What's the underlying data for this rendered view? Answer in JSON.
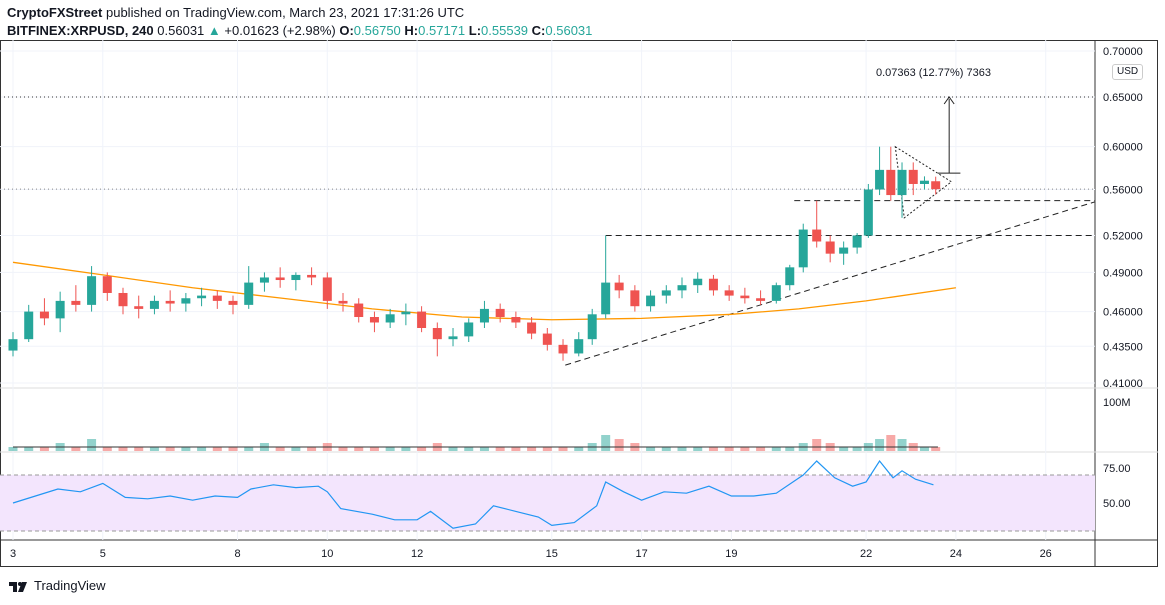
{
  "header": {
    "line1_author": "CryptoFXStreet",
    "line1_rest": "published on TradingView.com, March 23, 2021 17:31:26 UTC",
    "symbol": "BITFINEX:XRPUSD, 240",
    "last": "0.56031",
    "change": "+0.01623 (+2.98%)",
    "o_label": "O:",
    "o": "0.56750",
    "h_label": "H:",
    "h": "0.57171",
    "l_label": "L:",
    "l": "0.55539",
    "c_label": "C:",
    "c": "0.56031"
  },
  "currency": "USD",
  "footer": {
    "brand": "TradingView"
  },
  "colors": {
    "up": "#26a69a",
    "down": "#ef5350",
    "ma": "#ff9800",
    "rsi": "#2196f3",
    "rsi_band": "#f3e5fd"
  },
  "chart_data": {
    "type": "candlestick",
    "price_scale": "log",
    "ylim": [
      0.41,
      0.7
    ],
    "y_ticks": [
      "0.70000",
      "0.65000",
      "0.60000",
      "0.56000",
      "0.52000",
      "0.49000",
      "0.46000",
      "0.43500",
      "0.41000"
    ],
    "x_ticks": [
      "3",
      "5",
      "8",
      "10",
      "12",
      "15",
      "17",
      "19",
      "22",
      "24",
      "26"
    ],
    "xlim": [
      2.9,
      27.1
    ],
    "candles": [
      [
        3.0,
        0.432,
        0.445,
        0.428,
        0.44
      ],
      [
        3.35,
        0.44,
        0.465,
        0.438,
        0.46
      ],
      [
        3.7,
        0.46,
        0.47,
        0.45,
        0.455
      ],
      [
        4.05,
        0.455,
        0.475,
        0.445,
        0.468
      ],
      [
        4.4,
        0.468,
        0.48,
        0.46,
        0.465
      ],
      [
        4.75,
        0.465,
        0.495,
        0.46,
        0.487
      ],
      [
        5.1,
        0.487,
        0.49,
        0.468,
        0.474
      ],
      [
        5.45,
        0.474,
        0.478,
        0.458,
        0.464
      ],
      [
        5.8,
        0.464,
        0.472,
        0.455,
        0.462
      ],
      [
        6.15,
        0.462,
        0.472,
        0.458,
        0.468
      ],
      [
        6.5,
        0.468,
        0.476,
        0.46,
        0.466
      ],
      [
        6.85,
        0.466,
        0.474,
        0.46,
        0.47
      ],
      [
        7.2,
        0.47,
        0.478,
        0.464,
        0.472
      ],
      [
        7.55,
        0.472,
        0.476,
        0.462,
        0.468
      ],
      [
        7.9,
        0.468,
        0.472,
        0.458,
        0.465
      ],
      [
        8.25,
        0.465,
        0.495,
        0.462,
        0.482
      ],
      [
        8.6,
        0.482,
        0.49,
        0.475,
        0.486
      ],
      [
        8.95,
        0.486,
        0.494,
        0.478,
        0.484
      ],
      [
        9.3,
        0.484,
        0.49,
        0.476,
        0.488
      ],
      [
        9.65,
        0.488,
        0.494,
        0.48,
        0.486
      ],
      [
        10.0,
        0.486,
        0.49,
        0.462,
        0.468
      ],
      [
        10.35,
        0.468,
        0.474,
        0.46,
        0.466
      ],
      [
        10.7,
        0.466,
        0.47,
        0.452,
        0.456
      ],
      [
        11.05,
        0.456,
        0.46,
        0.445,
        0.452
      ],
      [
        11.4,
        0.452,
        0.462,
        0.448,
        0.458
      ],
      [
        11.75,
        0.458,
        0.466,
        0.45,
        0.46
      ],
      [
        12.1,
        0.46,
        0.464,
        0.445,
        0.448
      ],
      [
        12.45,
        0.448,
        0.452,
        0.428,
        0.44
      ],
      [
        12.8,
        0.44,
        0.448,
        0.435,
        0.442
      ],
      [
        13.15,
        0.442,
        0.455,
        0.438,
        0.452
      ],
      [
        13.5,
        0.452,
        0.468,
        0.448,
        0.462
      ],
      [
        13.85,
        0.462,
        0.466,
        0.452,
        0.456
      ],
      [
        14.2,
        0.456,
        0.46,
        0.448,
        0.452
      ],
      [
        14.55,
        0.452,
        0.456,
        0.44,
        0.444
      ],
      [
        14.9,
        0.444,
        0.448,
        0.432,
        0.436
      ],
      [
        15.25,
        0.436,
        0.44,
        0.425,
        0.43
      ],
      [
        15.6,
        0.43,
        0.445,
        0.428,
        0.44
      ],
      [
        15.9,
        0.44,
        0.462,
        0.436,
        0.458
      ],
      [
        16.2,
        0.458,
        0.52,
        0.455,
        0.482
      ],
      [
        16.5,
        0.482,
        0.488,
        0.47,
        0.476
      ],
      [
        16.85,
        0.476,
        0.48,
        0.46,
        0.464
      ],
      [
        17.2,
        0.464,
        0.476,
        0.46,
        0.472
      ],
      [
        17.55,
        0.472,
        0.48,
        0.466,
        0.476
      ],
      [
        17.9,
        0.476,
        0.486,
        0.47,
        0.48
      ],
      [
        18.25,
        0.48,
        0.49,
        0.474,
        0.485
      ],
      [
        18.6,
        0.485,
        0.488,
        0.472,
        0.476
      ],
      [
        18.95,
        0.476,
        0.48,
        0.468,
        0.472
      ],
      [
        19.3,
        0.472,
        0.478,
        0.466,
        0.47
      ],
      [
        19.65,
        0.47,
        0.476,
        0.465,
        0.468
      ],
      [
        20.0,
        0.468,
        0.482,
        0.466,
        0.48
      ],
      [
        20.3,
        0.48,
        0.496,
        0.476,
        0.494
      ],
      [
        20.6,
        0.494,
        0.53,
        0.49,
        0.525
      ],
      [
        20.9,
        0.525,
        0.55,
        0.51,
        0.515
      ],
      [
        21.2,
        0.515,
        0.52,
        0.498,
        0.505
      ],
      [
        21.5,
        0.505,
        0.515,
        0.496,
        0.51
      ],
      [
        21.8,
        0.51,
        0.522,
        0.505,
        0.52
      ],
      [
        22.05,
        0.52,
        0.565,
        0.518,
        0.56
      ],
      [
        22.3,
        0.56,
        0.6,
        0.555,
        0.578
      ],
      [
        22.55,
        0.578,
        0.6,
        0.55,
        0.555
      ],
      [
        22.8,
        0.555,
        0.585,
        0.535,
        0.578
      ],
      [
        23.05,
        0.578,
        0.585,
        0.555,
        0.565
      ],
      [
        23.3,
        0.565,
        0.572,
        0.56,
        0.568
      ],
      [
        23.55,
        0.5675,
        0.5717,
        0.5554,
        0.5603
      ]
    ],
    "ma": [
      [
        3,
        0.498
      ],
      [
        5,
        0.488
      ],
      [
        7,
        0.478
      ],
      [
        9,
        0.47
      ],
      [
        11,
        0.462
      ],
      [
        13,
        0.456
      ],
      [
        15,
        0.454
      ],
      [
        17,
        0.455
      ],
      [
        19,
        0.458
      ],
      [
        20.5,
        0.462
      ],
      [
        22,
        0.468
      ],
      [
        24,
        0.478
      ]
    ],
    "volume_label": "100M",
    "volume": [
      1,
      1,
      1,
      2,
      1,
      3,
      1,
      1,
      1,
      1,
      1,
      1,
      1,
      1,
      1,
      1,
      2,
      1,
      1,
      1,
      2,
      1,
      1,
      1,
      1,
      1,
      1,
      2,
      1,
      1,
      1,
      1,
      1,
      1,
      1,
      1,
      1,
      2,
      4,
      3,
      2,
      1,
      1,
      1,
      1,
      1,
      1,
      1,
      1,
      1,
      1,
      2,
      3,
      2,
      1,
      1,
      2,
      3,
      4,
      3,
      2,
      1,
      1
    ],
    "rsi_ticks": [
      "75.00",
      "50.00"
    ],
    "rsi_levels": [
      70,
      30
    ],
    "rsi": [
      [
        3,
        50
      ],
      [
        3.5,
        55
      ],
      [
        4,
        60
      ],
      [
        4.5,
        58
      ],
      [
        5,
        64
      ],
      [
        5.5,
        54
      ],
      [
        6,
        53
      ],
      [
        6.5,
        55
      ],
      [
        7,
        52
      ],
      [
        7.5,
        55
      ],
      [
        8,
        54
      ],
      [
        8.3,
        60
      ],
      [
        8.8,
        63
      ],
      [
        9.3,
        61
      ],
      [
        9.8,
        62
      ],
      [
        10,
        58
      ],
      [
        10.3,
        46
      ],
      [
        11,
        42
      ],
      [
        11.5,
        38
      ],
      [
        12,
        38
      ],
      [
        12.3,
        44
      ],
      [
        12.8,
        32
      ],
      [
        13.3,
        35
      ],
      [
        13.7,
        48
      ],
      [
        14.2,
        44
      ],
      [
        14.7,
        40
      ],
      [
        15,
        34
      ],
      [
        15.5,
        36
      ],
      [
        16,
        48
      ],
      [
        16.2,
        65
      ],
      [
        16.6,
        58
      ],
      [
        17,
        52
      ],
      [
        17.5,
        58
      ],
      [
        18,
        57
      ],
      [
        18.5,
        62
      ],
      [
        19,
        55
      ],
      [
        19.5,
        55
      ],
      [
        20,
        57
      ],
      [
        20.6,
        70
      ],
      [
        20.9,
        80
      ],
      [
        21.3,
        68
      ],
      [
        21.7,
        62
      ],
      [
        22,
        65
      ],
      [
        22.3,
        80
      ],
      [
        22.6,
        68
      ],
      [
        22.8,
        73
      ],
      [
        23.1,
        67
      ],
      [
        23.5,
        63
      ]
    ],
    "annotations": {
      "measure_label": "0.07363 (12.77%) 7363",
      "target": 0.65,
      "resistance_1": 0.52,
      "resistance_2": 0.55
    }
  }
}
